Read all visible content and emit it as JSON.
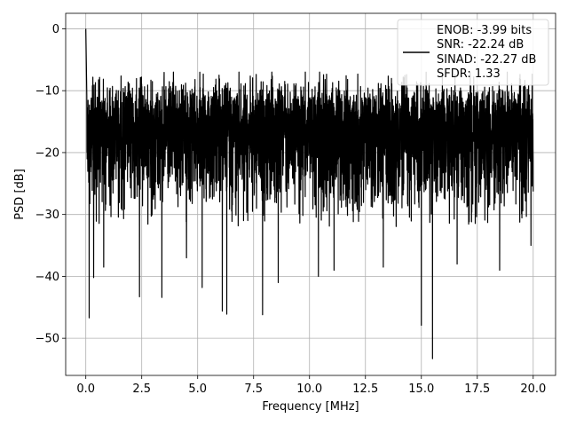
{
  "chart_data": {
    "type": "line",
    "title": "",
    "xlabel": "Frequency [MHz]",
    "ylabel": "PSD [dB]",
    "xlim": [
      -0.9,
      21.0
    ],
    "ylim": [
      -56,
      2.5
    ],
    "xticks": [
      0.0,
      2.5,
      5.0,
      7.5,
      10.0,
      12.5,
      15.0,
      17.5,
      20.0
    ],
    "xtick_labels": [
      "0.0",
      "2.5",
      "5.0",
      "7.5",
      "10.0",
      "12.5",
      "15.0",
      "17.5",
      "20.0"
    ],
    "yticks": [
      0,
      -10,
      -20,
      -30,
      -40,
      -50
    ],
    "ytick_labels": [
      "0",
      "−10",
      "−20",
      "−30",
      "−40",
      "−50"
    ],
    "grid": true,
    "legend_position": "top-right",
    "line_color": "#000000",
    "legend": {
      "lines": [
        "ENOB: -3.99 bits",
        "SNR: -22.24 dB",
        "SINAD: -22.27 dB",
        "SFDR: 1.33"
      ]
    },
    "series": [
      {
        "description": "dense noise-like PSD trace, ~-20 dB mean, fluctuating between about -10 and -30 dB with deep dips",
        "x_start": 0.0,
        "x_end": 20.0,
        "points_per_line": 4000,
        "baseline": -20,
        "peak_start": 0,
        "dips": [
          [
            0.15,
            -46.7
          ],
          [
            0.35,
            -40.2
          ],
          [
            0.8,
            -38.5
          ],
          [
            2.4,
            -43.3
          ],
          [
            3.4,
            -43.4
          ],
          [
            4.5,
            -37.0
          ],
          [
            5.2,
            -41.8
          ],
          [
            6.1,
            -45.6
          ],
          [
            6.3,
            -46.1
          ],
          [
            7.9,
            -46.2
          ],
          [
            8.6,
            -41.0
          ],
          [
            10.4,
            -40.0
          ],
          [
            11.1,
            -39.0
          ],
          [
            13.3,
            -38.5
          ],
          [
            15.0,
            -47.9
          ],
          [
            15.5,
            -53.3
          ],
          [
            16.6,
            -38.0
          ],
          [
            18.5,
            -39.0
          ],
          [
            19.9,
            -35.0
          ]
        ]
      }
    ]
  }
}
